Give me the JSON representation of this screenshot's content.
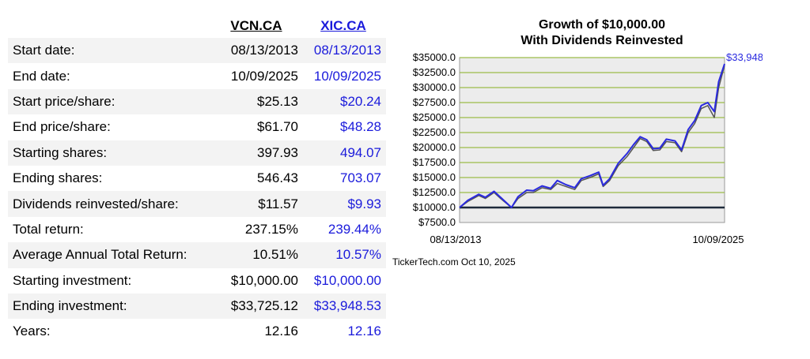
{
  "table": {
    "headers": {
      "col1": "VCN.CA",
      "col2": "XIC.CA"
    },
    "rows": [
      {
        "label": "Start date:",
        "v1": "08/13/2013",
        "v2": "08/13/2013"
      },
      {
        "label": "End date:",
        "v1": "10/09/2025",
        "v2": "10/09/2025"
      },
      {
        "label": "Start price/share:",
        "v1": "$25.13",
        "v2": "$20.24"
      },
      {
        "label": "End price/share:",
        "v1": "$61.70",
        "v2": "$48.28"
      },
      {
        "label": "Starting shares:",
        "v1": "397.93",
        "v2": "494.07"
      },
      {
        "label": "Ending shares:",
        "v1": "546.43",
        "v2": "703.07"
      },
      {
        "label": "Dividends reinvested/share:",
        "v1": "$11.57",
        "v2": "$9.93"
      },
      {
        "label": "Total return:",
        "v1": "237.15%",
        "v2": "239.44%"
      },
      {
        "label": "Average Annual Total Return:",
        "v1": "10.51%",
        "v2": "10.57%"
      },
      {
        "label": "Starting investment:",
        "v1": "$10,000.00",
        "v2": "$10,000.00"
      },
      {
        "label": "Ending investment:",
        "v1": "$33,725.12",
        "v2": "$33,948.53"
      },
      {
        "label": "Years:",
        "v1": "12.16",
        "v2": "12.16"
      }
    ]
  },
  "chart_data": {
    "type": "line",
    "title": [
      "Growth of $10,000.00",
      "With Dividends Reinvested"
    ],
    "x_start_label": "08/13/2013",
    "x_end_label": "10/09/2025",
    "ylim": [
      7500,
      35000
    ],
    "y_ticks": [
      "$7500.0",
      "$10000.0",
      "$12500.0",
      "$15000.0",
      "$17500.0",
      "$20000.0",
      "$22500.0",
      "$25000.0",
      "$27500.0",
      "$30000.0",
      "$32500.0",
      "$35000.0"
    ],
    "x": [
      2013.62,
      2014.0,
      2014.5,
      2014.8,
      2015.2,
      2015.5,
      2016.0,
      2016.3,
      2016.7,
      2017.0,
      2017.4,
      2017.8,
      2018.1,
      2018.5,
      2018.9,
      2019.2,
      2019.6,
      2020.0,
      2020.2,
      2020.5,
      2020.9,
      2021.3,
      2021.6,
      2021.9,
      2022.2,
      2022.5,
      2022.8,
      2023.1,
      2023.5,
      2023.8,
      2024.1,
      2024.4,
      2024.7,
      2025.0,
      2025.3,
      2025.5,
      2025.77
    ],
    "series": [
      {
        "values": [
          10000,
          11000,
          12000,
          11500,
          12500,
          11500,
          10000,
          11500,
          12500,
          12500,
          13300,
          13000,
          14000,
          13500,
          13000,
          14500,
          15000,
          15600,
          13500,
          14500,
          17000,
          18500,
          20000,
          21500,
          21000,
          19500,
          19600,
          21000,
          20800,
          19300,
          22500,
          24000,
          26500,
          27000,
          25000,
          30000,
          33725.12
        ],
        "color": "#555555"
      },
      {
        "values": [
          10000,
          11200,
          12200,
          11700,
          12700,
          11700,
          10000,
          11800,
          12900,
          12800,
          13600,
          13200,
          14500,
          13800,
          13300,
          14800,
          15300,
          15900,
          13700,
          14800,
          17400,
          19000,
          20500,
          21800,
          21300,
          19800,
          19900,
          21400,
          21100,
          19600,
          23000,
          24500,
          27000,
          27500,
          26000,
          31000,
          33948.53
        ],
        "color": "#2a2adf"
      }
    ],
    "end_label": "$33,948.53",
    "baseline": 10000,
    "credit": "TickerTech.com  Oct 10, 2025"
  }
}
